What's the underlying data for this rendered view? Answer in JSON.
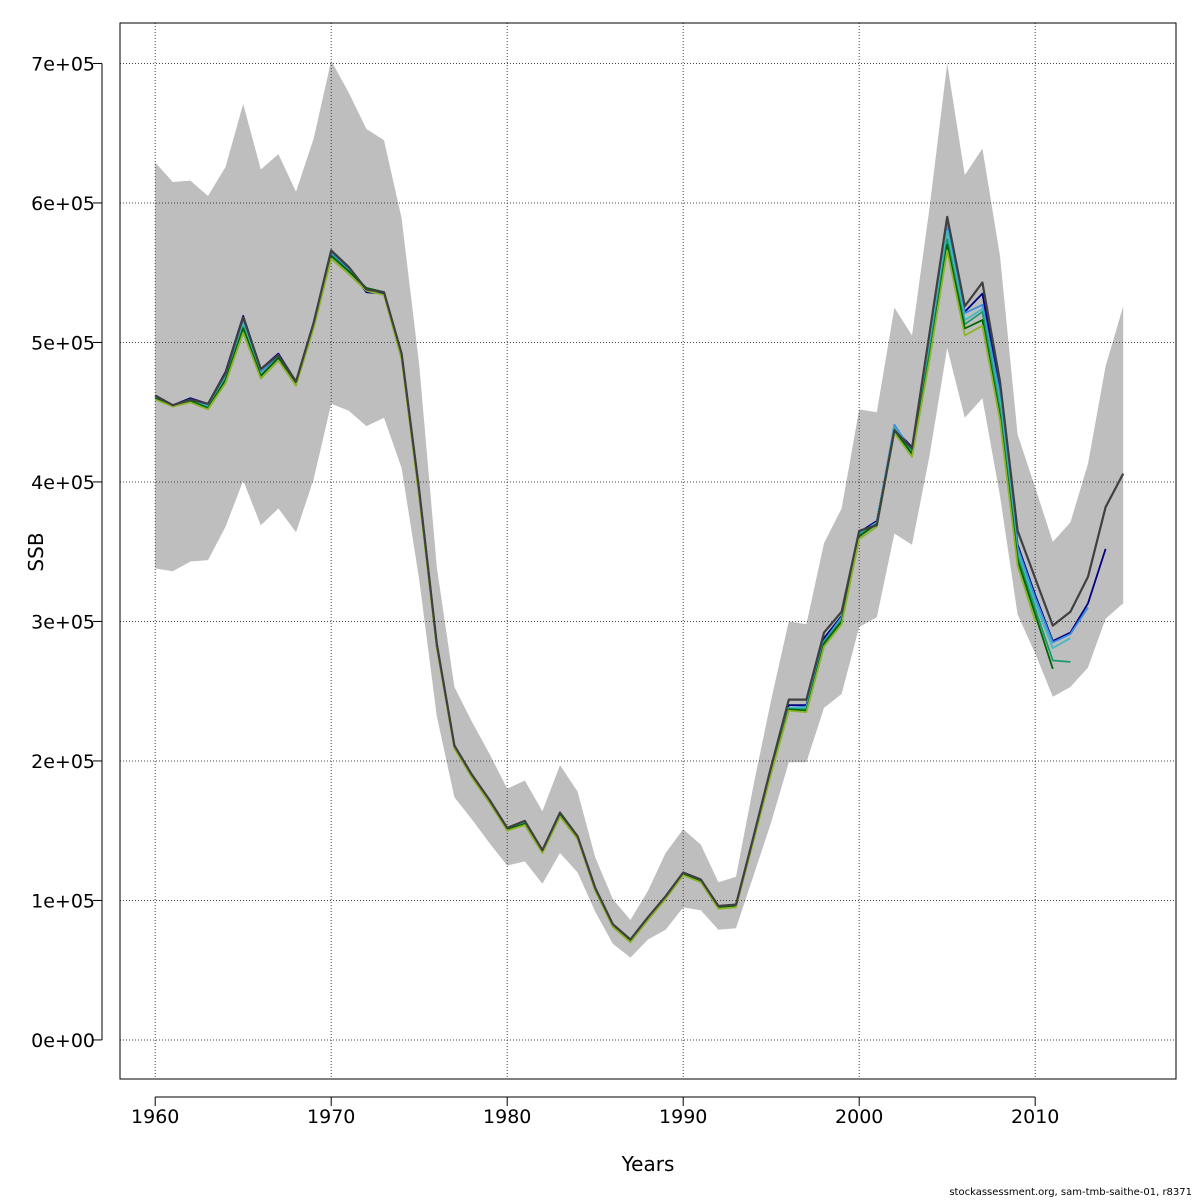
{
  "chart_data": {
    "type": "line",
    "xlabel": "Years",
    "ylabel": "SSB",
    "xlim": [
      1958,
      2018
    ],
    "ylim": [
      -28000,
      729000
    ],
    "x_ticks": [
      1960,
      1970,
      1980,
      1990,
      2000,
      2010
    ],
    "x_tick_labels": [
      "1960",
      "1970",
      "1980",
      "1990",
      "2000",
      "2010"
    ],
    "y_ticks": [
      0,
      100000,
      200000,
      300000,
      400000,
      500000,
      600000,
      700000
    ],
    "y_tick_labels": [
      "0e+00",
      "1e+05",
      "2e+05",
      "3e+05",
      "4e+05",
      "5e+05",
      "6e+05",
      "7e+05"
    ],
    "grid": true,
    "band_color": "#bebebe",
    "confidence_band": {
      "x": [
        1960,
        1961,
        1962,
        1963,
        1964,
        1965,
        1966,
        1967,
        1968,
        1969,
        1970,
        1971,
        1972,
        1973,
        1974,
        1975,
        1976,
        1977,
        1978,
        1979,
        1980,
        1981,
        1982,
        1983,
        1984,
        1985,
        1986,
        1987,
        1988,
        1989,
        1990,
        1991,
        1992,
        1993,
        1994,
        1995,
        1996,
        1997,
        1998,
        1999,
        2000,
        2001,
        2002,
        2003,
        2004,
        2005,
        2006,
        2007,
        2008,
        2009,
        2010,
        2011,
        2012,
        2013,
        2014,
        2015
      ],
      "lower": [
        338000,
        336000,
        343000,
        344000,
        368000,
        401000,
        369000,
        381000,
        364000,
        402000,
        456000,
        451000,
        440000,
        446000,
        410000,
        330000,
        232000,
        174000,
        158000,
        141000,
        125000,
        128000,
        112000,
        134000,
        120000,
        92000,
        69000,
        59000,
        72000,
        79000,
        95000,
        93000,
        79000,
        80000,
        118000,
        156000,
        199000,
        199000,
        238000,
        248000,
        296000,
        303000,
        363000,
        355000,
        419000,
        496000,
        446000,
        460000,
        390000,
        305000,
        277000,
        246000,
        253000,
        267000,
        302000,
        313000
      ],
      "upper": [
        629000,
        615000,
        616000,
        605000,
        626000,
        671000,
        624000,
        635000,
        608000,
        646000,
        702000,
        679000,
        653000,
        645000,
        589000,
        484000,
        339000,
        253000,
        228000,
        205000,
        180000,
        186000,
        164000,
        197000,
        178000,
        131000,
        101000,
        86000,
        107000,
        134000,
        151000,
        140000,
        113000,
        117000,
        183000,
        244000,
        300000,
        298000,
        356000,
        381000,
        452000,
        450000,
        525000,
        505000,
        597000,
        700000,
        620000,
        639000,
        562000,
        434000,
        396000,
        357000,
        371000,
        413000,
        483000,
        526000
      ]
    },
    "series": [
      {
        "color": "#000080",
        "x": [
          1960,
          1961,
          1962,
          1963,
          1964,
          1965,
          1966,
          1967,
          1968,
          1969,
          1970,
          1971,
          1972,
          1973,
          1974,
          1975,
          1976,
          1977,
          1978,
          1979,
          1980,
          1981,
          1982,
          1983,
          1984,
          1985,
          1986,
          1987,
          1988,
          1989,
          1990,
          1991,
          1992,
          1993,
          1994,
          1995,
          1996,
          1997,
          1998,
          1999,
          2000,
          2001,
          2002,
          2003,
          2004,
          2005,
          2006,
          2007,
          2008,
          2009,
          2010,
          2011,
          2012,
          2013,
          2014
        ],
        "values": [
          462000,
          455000,
          460000,
          456000,
          479000,
          519000,
          481000,
          492000,
          472000,
          514000,
          566000,
          553000,
          536000,
          535000,
          492000,
          394000,
          284000,
          211000,
          190000,
          172000,
          152000,
          157000,
          136000,
          163000,
          146000,
          109000,
          83000,
          72000,
          88000,
          103000,
          120000,
          115000,
          96000,
          97000,
          146000,
          196000,
          240000,
          240000,
          288000,
          304000,
          364000,
          372000,
          438000,
          425000,
          500000,
          582000,
          522000,
          535000,
          465000,
          355000,
          319000,
          286000,
          292000,
          313000,
          352000
        ]
      },
      {
        "color": "#3c8ce0",
        "x": [
          1960,
          1961,
          1962,
          1963,
          1964,
          1965,
          1966,
          1967,
          1968,
          1969,
          1970,
          1971,
          1972,
          1973,
          1974,
          1975,
          1976,
          1977,
          1978,
          1979,
          1980,
          1981,
          1982,
          1983,
          1984,
          1985,
          1986,
          1987,
          1988,
          1989,
          1990,
          1991,
          1992,
          1993,
          1994,
          1995,
          1996,
          1997,
          1998,
          1999,
          2000,
          2001,
          2002,
          2003,
          2004,
          2005,
          2006,
          2007,
          2008,
          2009,
          2010,
          2011,
          2012,
          2013
        ],
        "values": [
          461000,
          455000,
          459000,
          455000,
          477000,
          516000,
          479000,
          490000,
          471000,
          513000,
          564000,
          552000,
          538000,
          536000,
          491000,
          393000,
          283000,
          210000,
          189000,
          171000,
          151000,
          156000,
          135000,
          162000,
          145000,
          108000,
          82000,
          71000,
          87000,
          102000,
          119000,
          114000,
          95000,
          96000,
          145000,
          194000,
          238000,
          239000,
          286000,
          303000,
          363000,
          371000,
          441000,
          422000,
          500000,
          585000,
          521000,
          527000,
          463000,
          353000,
          317000,
          285000,
          291000,
          310000
        ]
      },
      {
        "color": "#44b8c0",
        "x": [
          1960,
          1961,
          1962,
          1963,
          1964,
          1965,
          1966,
          1967,
          1968,
          1969,
          1970,
          1971,
          1972,
          1973,
          1974,
          1975,
          1976,
          1977,
          1978,
          1979,
          1980,
          1981,
          1982,
          1983,
          1984,
          1985,
          1986,
          1987,
          1988,
          1989,
          1990,
          1991,
          1992,
          1993,
          1994,
          1995,
          1996,
          1997,
          1998,
          1999,
          2000,
          2001,
          2002,
          2003,
          2004,
          2005,
          2006,
          2007,
          2008,
          2009,
          2010,
          2011,
          2012
        ],
        "values": [
          460000,
          455000,
          458000,
          454000,
          475000,
          513000,
          477000,
          489000,
          471000,
          512000,
          563000,
          551000,
          539000,
          536000,
          490000,
          392000,
          283000,
          210000,
          189000,
          171000,
          151000,
          156000,
          135000,
          161000,
          145000,
          108000,
          82000,
          71000,
          87000,
          102000,
          119000,
          114000,
          95000,
          96000,
          144000,
          193000,
          238000,
          238000,
          285000,
          302000,
          362000,
          371000,
          439000,
          422000,
          497000,
          580000,
          516000,
          524000,
          457000,
          350000,
          313000,
          281000,
          288000
        ]
      },
      {
        "color": "#1a9a70",
        "x": [
          1960,
          1961,
          1962,
          1963,
          1964,
          1965,
          1966,
          1967,
          1968,
          1969,
          1970,
          1971,
          1972,
          1973,
          1974,
          1975,
          1976,
          1977,
          1978,
          1979,
          1980,
          1981,
          1982,
          1983,
          1984,
          1985,
          1986,
          1987,
          1988,
          1989,
          1990,
          1991,
          1992,
          1993,
          1994,
          1995,
          1996,
          1997,
          1998,
          1999,
          2000,
          2001,
          2002,
          2003,
          2004,
          2005,
          2006,
          2007,
          2008,
          2009,
          2010,
          2011,
          2012
        ],
        "values": [
          460000,
          455000,
          458000,
          453000,
          474000,
          511000,
          476000,
          489000,
          471000,
          512000,
          563000,
          551000,
          539000,
          536000,
          490000,
          391000,
          282000,
          210000,
          189000,
          171000,
          151000,
          155000,
          135000,
          161000,
          145000,
          108000,
          82000,
          71000,
          87000,
          102000,
          119000,
          114000,
          95000,
          96000,
          144000,
          193000,
          237000,
          237000,
          285000,
          301000,
          362000,
          370000,
          438000,
          421000,
          494000,
          574000,
          513000,
          522000,
          452000,
          347000,
          309000,
          272000,
          271000
        ]
      },
      {
        "color": "#006400",
        "x": [
          1960,
          1961,
          1962,
          1963,
          1964,
          1965,
          1966,
          1967,
          1968,
          1969,
          1970,
          1971,
          1972,
          1973,
          1974,
          1975,
          1976,
          1977,
          1978,
          1979,
          1980,
          1981,
          1982,
          1983,
          1984,
          1985,
          1986,
          1987,
          1988,
          1989,
          1990,
          1991,
          1992,
          1993,
          1994,
          1995,
          1996,
          1997,
          1998,
          1999,
          2000,
          2001,
          2002,
          2003,
          2004,
          2005,
          2006,
          2007,
          2008,
          2009,
          2010,
          2011
        ],
        "values": [
          460000,
          455000,
          458000,
          453000,
          473000,
          510000,
          476000,
          489000,
          471000,
          512000,
          562000,
          551000,
          539000,
          536000,
          490000,
          391000,
          282000,
          210000,
          189000,
          171000,
          151000,
          155000,
          135000,
          161000,
          145000,
          108000,
          82000,
          71000,
          87000,
          102000,
          119000,
          114000,
          95000,
          96000,
          144000,
          192000,
          237000,
          236000,
          284000,
          300000,
          361000,
          370000,
          437000,
          420000,
          490000,
          570000,
          510000,
          516000,
          447000,
          344000,
          305000,
          266000
        ]
      },
      {
        "color": "#8bb42a",
        "x": [
          1960,
          1961,
          1962,
          1963,
          1964,
          1965,
          1966,
          1967,
          1968,
          1969,
          1970,
          1971,
          1972,
          1973,
          1974,
          1975,
          1976,
          1977,
          1978,
          1979,
          1980,
          1981,
          1982,
          1983,
          1984,
          1985,
          1986,
          1987,
          1988,
          1989,
          1990,
          1991,
          1992,
          1993,
          1994,
          1995,
          1996,
          1997,
          1998,
          1999,
          2000,
          2001,
          2002,
          2003,
          2004,
          2005,
          2006,
          2007,
          2008,
          2009,
          2010
        ],
        "values": [
          459000,
          454000,
          457000,
          452000,
          471000,
          507000,
          474000,
          487000,
          469000,
          510000,
          560000,
          549000,
          537000,
          534000,
          488000,
          389000,
          281000,
          209000,
          188000,
          170000,
          150000,
          154000,
          134000,
          160000,
          144000,
          107000,
          81000,
          70000,
          86000,
          101000,
          118000,
          113000,
          94000,
          95000,
          143000,
          191000,
          236000,
          235000,
          282000,
          298000,
          359000,
          368000,
          435000,
          418000,
          488000,
          566000,
          505000,
          512000,
          444000,
          340000,
          300000
        ]
      },
      {
        "color": "#404040",
        "x": [
          1960,
          1961,
          1962,
          1963,
          1964,
          1965,
          1966,
          1967,
          1968,
          1969,
          1970,
          1971,
          1972,
          1973,
          1974,
          1975,
          1976,
          1977,
          1978,
          1979,
          1980,
          1981,
          1982,
          1983,
          1984,
          1985,
          1986,
          1987,
          1988,
          1989,
          1990,
          1991,
          1992,
          1993,
          1994,
          1995,
          1996,
          1997,
          1998,
          1999,
          2000,
          2001,
          2002,
          2003,
          2004,
          2005,
          2006,
          2007,
          2008,
          2009,
          2010,
          2011,
          2012,
          2013,
          2014,
          2015
        ],
        "values": [
          462000,
          455000,
          459000,
          456000,
          478000,
          518000,
          481000,
          491000,
          472000,
          514000,
          566000,
          554000,
          538000,
          536000,
          492000,
          394000,
          284000,
          211000,
          190000,
          172000,
          152000,
          157000,
          136000,
          163000,
          146000,
          109000,
          83000,
          72000,
          88000,
          103000,
          120000,
          115000,
          96000,
          97000,
          146000,
          196000,
          244000,
          244000,
          292000,
          307000,
          365000,
          369000,
          437000,
          424000,
          507000,
          590000,
          526000,
          543000,
          472000,
          365000,
          331000,
          297000,
          307000,
          332000,
          382000,
          406000
        ]
      }
    ]
  },
  "footer": {
    "credit": "stockassessment.org, sam-tmb-saithe-01, r8371"
  }
}
